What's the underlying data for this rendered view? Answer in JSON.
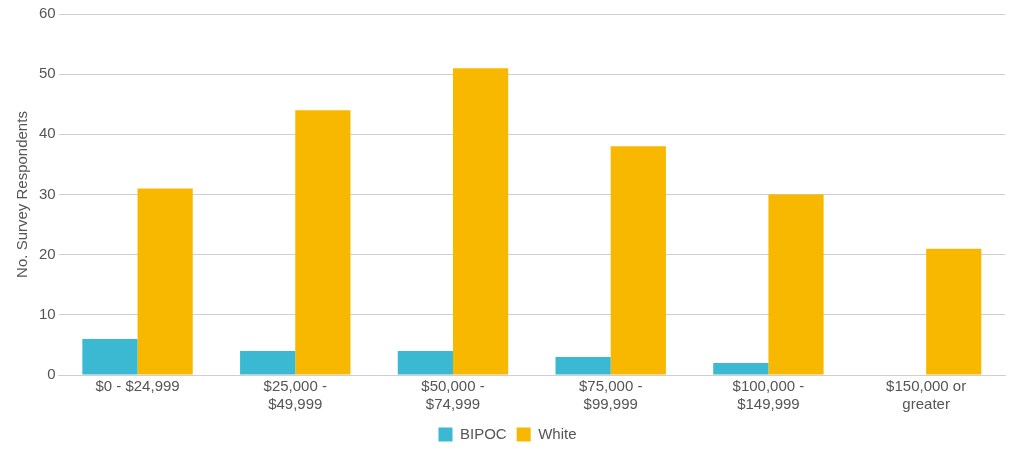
{
  "chart_data": {
    "type": "bar",
    "ylabel": "No. Survey Respondents",
    "categories": [
      "$0 - $24,999",
      "$25,000 -\n$49,999",
      "$50,000 -\n$74,999",
      "$75,000 -\n$99,999",
      "$100,000 -\n$149,999",
      "$150,000 or\ngreater"
    ],
    "series": [
      {
        "name": "BIPOC",
        "color": "#3cb9d2",
        "values": [
          6,
          4,
          4,
          3,
          2,
          0
        ]
      },
      {
        "name": "White",
        "color": "#f8b800",
        "values": [
          31,
          44,
          51,
          38,
          30,
          21
        ]
      }
    ],
    "ylim": [
      0,
      60
    ],
    "yticks": [
      0,
      10,
      20,
      30,
      40,
      50,
      60
    ],
    "grid": "y",
    "legend": "bottom"
  }
}
